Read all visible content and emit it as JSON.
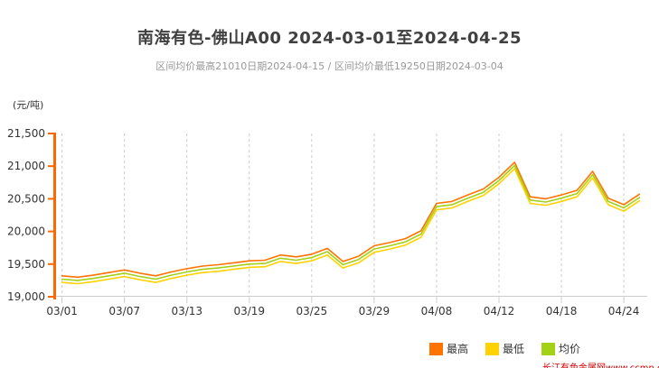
{
  "title": "南海有色-佛山A00 2024-03-01至2024-04-25",
  "subtitle": "区间均价最高21010日期2024-04-15 / 区间均价最低19250日期2024-03-04",
  "watermark": "长江有色金属网www.ccmn.cn",
  "colors": {
    "title": "#404040",
    "subtitle": "#999999",
    "axis_text": "#333333",
    "y_axis_line": "#FF6600",
    "x_axis_line": "#CCCCCC",
    "gridline": "#CCCCCC",
    "high": "#FF7300",
    "low": "#FFD200",
    "avg": "#A2D116",
    "watermark": "#D40000"
  },
  "chart_data": {
    "type": "line",
    "title": "南海有色-佛山A00 2024-03-01至2024-04-25",
    "subtitle": "区间均价最高21010日期2024-04-15 / 区间均价最低19250日期2024-03-04",
    "xlabel": "",
    "ylabel": "(元/吨)",
    "ylim": [
      19000,
      21500
    ],
    "ytick_step": 500,
    "ytick_labels": [
      "19,000",
      "19,500",
      "20,000",
      "20,500",
      "21,000",
      "21,500"
    ],
    "xtick_indices": [
      0,
      4,
      8,
      12,
      16,
      20,
      24,
      28,
      32,
      36
    ],
    "xtick_labels": [
      "03/01",
      "03/07",
      "03/13",
      "03/19",
      "03/25",
      "03/29",
      "04/08",
      "04/12",
      "04/18",
      "04/24"
    ],
    "grid": "vertical-dashed",
    "legend_position": "bottom-right",
    "categories": [
      "03/01",
      "03/04",
      "03/05",
      "03/06",
      "03/07",
      "03/08",
      "03/11",
      "03/12",
      "03/13",
      "03/14",
      "03/15",
      "03/18",
      "03/19",
      "03/20",
      "03/21",
      "03/22",
      "03/25",
      "03/26",
      "03/27",
      "03/28",
      "03/29",
      "04/01",
      "04/02",
      "04/03",
      "04/08",
      "04/09",
      "04/10",
      "04/11",
      "04/12",
      "04/15",
      "04/16",
      "04/17",
      "04/18",
      "04/19",
      "04/22",
      "04/23",
      "04/24",
      "04/25"
    ],
    "series": [
      {
        "key": "high",
        "name": "最高",
        "color": "#FF7300",
        "values": [
          19320,
          19300,
          19330,
          19370,
          19410,
          19360,
          19320,
          19380,
          19430,
          19470,
          19490,
          19520,
          19550,
          19560,
          19640,
          19610,
          19650,
          19740,
          19540,
          19620,
          19780,
          19830,
          19890,
          20010,
          20430,
          20460,
          20560,
          20650,
          20830,
          21060,
          20530,
          20500,
          20560,
          20630,
          20920,
          20510,
          20410,
          20570
        ]
      },
      {
        "key": "low",
        "name": "最低",
        "color": "#FFD200",
        "values": [
          19220,
          19200,
          19230,
          19270,
          19310,
          19260,
          19220,
          19280,
          19330,
          19370,
          19390,
          19420,
          19450,
          19460,
          19540,
          19510,
          19550,
          19640,
          19440,
          19520,
          19680,
          19730,
          19790,
          19910,
          20330,
          20360,
          20460,
          20550,
          20730,
          20960,
          20430,
          20400,
          20460,
          20530,
          20820,
          20410,
          20310,
          20470
        ]
      },
      {
        "key": "avg",
        "name": "均价",
        "color": "#A2D116",
        "values": [
          19270,
          19250,
          19280,
          19320,
          19360,
          19310,
          19270,
          19330,
          19380,
          19420,
          19440,
          19470,
          19500,
          19510,
          19590,
          19560,
          19600,
          19690,
          19490,
          19570,
          19730,
          19780,
          19840,
          19960,
          20380,
          20410,
          20510,
          20600,
          20780,
          21010,
          20480,
          20450,
          20510,
          20580,
          20870,
          20460,
          20360,
          20520
        ]
      }
    ]
  }
}
